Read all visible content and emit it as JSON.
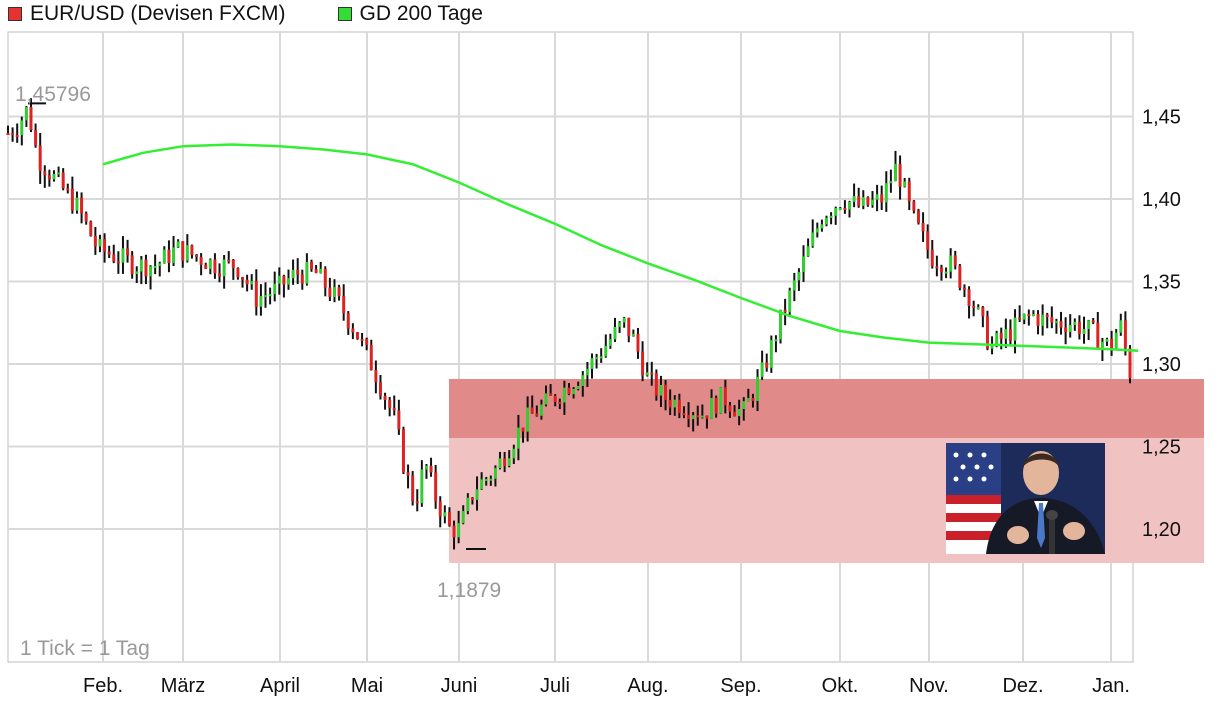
{
  "legend": {
    "series1": "EUR/USD (Devisen FXCM)",
    "series2": "GD 200 Tage"
  },
  "colors": {
    "up_bar": "#33cc33",
    "down_bar": "#dd2222",
    "ma_line": "#33ee33",
    "grid": "#d9d9d9",
    "zone_dark": "#e08a8a",
    "zone_light": "#f1c2c2"
  },
  "icons": [
    "photo-portrait-icon"
  ],
  "chart_data": {
    "type": "ohlc",
    "title": "",
    "ylim": [
      1.15,
      1.5
    ],
    "y_ticks": [
      "1,45",
      "1,40",
      "1,35",
      "1,30",
      "1,25",
      "1,20"
    ],
    "y_tick_values": [
      1.45,
      1.4,
      1.35,
      1.3,
      1.25,
      1.2
    ],
    "x_ticks": [
      "Feb.",
      "März",
      "April",
      "Mai",
      "Juni",
      "Juli",
      "Aug.",
      "Sep.",
      "Okt.",
      "Nov.",
      "Dez.",
      "Jan."
    ],
    "annotations": {
      "high": "1,45796",
      "low": "1,1879",
      "tick_info": "1 Tick = 1 Tag"
    },
    "series": [
      {
        "name": "EUR/USD (Devisen FXCM)",
        "kind": "daily_close",
        "points": [
          [
            0,
            1.44
          ],
          [
            0.1,
            1.445
          ],
          [
            0.2,
            1.455
          ],
          [
            0.3,
            1.425
          ],
          [
            0.5,
            1.41
          ],
          [
            0.7,
            1.395
          ],
          [
            0.9,
            1.37
          ],
          [
            1.1,
            1.365
          ],
          [
            1.3,
            1.36
          ],
          [
            1.5,
            1.36
          ],
          [
            1.7,
            1.37
          ],
          [
            1.9,
            1.365
          ],
          [
            2.1,
            1.36
          ],
          [
            2.3,
            1.36
          ],
          [
            2.5,
            1.34
          ],
          [
            2.7,
            1.345
          ],
          [
            2.9,
            1.355
          ],
          [
            3.1,
            1.355
          ],
          [
            3.3,
            1.34
          ],
          [
            3.5,
            1.32
          ],
          [
            3.7,
            1.295
          ],
          [
            3.9,
            1.265
          ],
          [
            4.0,
            1.235
          ],
          [
            4.1,
            1.215
          ],
          [
            4.2,
            1.24
          ],
          [
            4.3,
            1.22
          ],
          [
            4.45,
            1.2
          ],
          [
            4.55,
            1.2
          ],
          [
            4.7,
            1.225
          ],
          [
            4.9,
            1.235
          ],
          [
            5.0,
            1.245
          ],
          [
            5.2,
            1.265
          ],
          [
            5.4,
            1.275
          ],
          [
            5.6,
            1.285
          ],
          [
            5.8,
            1.295
          ],
          [
            6.0,
            1.31
          ],
          [
            6.2,
            1.325
          ],
          [
            6.3,
            1.315
          ],
          [
            6.45,
            1.29
          ],
          [
            6.6,
            1.28
          ],
          [
            6.8,
            1.275
          ],
          [
            7.0,
            1.27
          ],
          [
            7.2,
            1.28
          ],
          [
            7.4,
            1.27
          ],
          [
            7.6,
            1.295
          ],
          [
            7.8,
            1.33
          ],
          [
            8.0,
            1.36
          ],
          [
            8.2,
            1.39
          ],
          [
            8.4,
            1.4
          ],
          [
            8.6,
            1.395
          ],
          [
            8.8,
            1.4
          ],
          [
            8.95,
            1.42
          ],
          [
            9.1,
            1.39
          ],
          [
            9.3,
            1.365
          ],
          [
            9.5,
            1.36
          ],
          [
            9.7,
            1.34
          ],
          [
            9.9,
            1.31
          ],
          [
            10.1,
            1.32
          ],
          [
            10.3,
            1.33
          ],
          [
            10.5,
            1.325
          ],
          [
            10.7,
            1.325
          ],
          [
            10.9,
            1.32
          ],
          [
            11.1,
            1.31
          ],
          [
            11.2,
            1.325
          ],
          [
            11.3,
            1.295
          ]
        ]
      },
      {
        "name": "GD 200 Tage",
        "kind": "moving_average",
        "points": [
          [
            0,
            1.421
          ],
          [
            0.5,
            1.428
          ],
          [
            1,
            1.432
          ],
          [
            1.5,
            1.433
          ],
          [
            2,
            1.432
          ],
          [
            2.5,
            1.43
          ],
          [
            3,
            1.427
          ],
          [
            3.5,
            1.421
          ],
          [
            4,
            1.41
          ],
          [
            4.5,
            1.397
          ],
          [
            5,
            1.385
          ],
          [
            5.5,
            1.372
          ],
          [
            6,
            1.361
          ],
          [
            6.5,
            1.351
          ],
          [
            7,
            1.34
          ],
          [
            7.5,
            1.329
          ],
          [
            8,
            1.32
          ],
          [
            8.5,
            1.316
          ],
          [
            9,
            1.313
          ],
          [
            9.5,
            1.312
          ],
          [
            10,
            1.311
          ],
          [
            10.5,
            1.31
          ],
          [
            11,
            1.309
          ],
          [
            11.3,
            1.308
          ]
        ]
      }
    ]
  }
}
